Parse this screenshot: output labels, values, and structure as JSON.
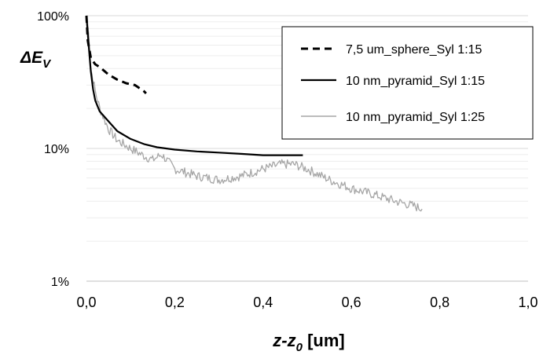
{
  "chart_data": {
    "type": "line",
    "ylabel_main": "ΔE",
    "ylabel_sub": "V",
    "xlabel_main": "z-z",
    "xlabel_sub": "0",
    "xlabel_unit": " [um]",
    "x_scale": "linear",
    "y_scale": "log",
    "xlim": [
      0,
      1
    ],
    "ylim": [
      1,
      100
    ],
    "x_ticks": [
      "0,0",
      "0,2",
      "0,4",
      "0,6",
      "0,8",
      "1,0"
    ],
    "y_ticks": [
      "1%",
      "10%",
      "100%"
    ],
    "grid": "horizontal major and minor",
    "legend_position": "top-right",
    "series": [
      {
        "name": "7,5 um_sphere_Syl 1:15",
        "style": "dashed",
        "color": "#000000",
        "x": [
          0.0,
          0.003,
          0.01,
          0.02,
          0.03,
          0.05,
          0.07,
          0.09,
          0.11,
          0.13,
          0.135
        ],
        "y": [
          100,
          65,
          48,
          43,
          41,
          36,
          33,
          31,
          30,
          27,
          26
        ]
      },
      {
        "name": "10 nm_pyramid_Syl 1:15",
        "style": "solid",
        "color": "#000000",
        "x": [
          0.0,
          0.005,
          0.01,
          0.015,
          0.02,
          0.03,
          0.05,
          0.07,
          0.1,
          0.13,
          0.16,
          0.2,
          0.25,
          0.3,
          0.35,
          0.4,
          0.45,
          0.49
        ],
        "y": [
          100,
          60,
          38,
          28,
          23,
          19,
          16,
          13.5,
          11.8,
          10.8,
          10.2,
          9.8,
          9.5,
          9.3,
          9.1,
          8.9,
          8.9,
          8.9
        ]
      },
      {
        "name": "10 nm_pyramid_Syl 1:25",
        "style": "solid",
        "color": "#a6a6a6",
        "x": [
          0.0,
          0.005,
          0.01,
          0.02,
          0.03,
          0.05,
          0.07,
          0.1,
          0.13,
          0.15,
          0.17,
          0.18,
          0.2,
          0.25,
          0.3,
          0.35,
          0.4,
          0.44,
          0.47,
          0.5,
          0.55,
          0.6,
          0.65,
          0.7,
          0.74,
          0.76
        ],
        "y": [
          100,
          78,
          40,
          27,
          20,
          14,
          11.5,
          10,
          8.8,
          8.2,
          9.0,
          8.3,
          7.0,
          6.2,
          5.8,
          6.2,
          7.0,
          7.6,
          7.6,
          7.0,
          5.8,
          5.0,
          4.5,
          4.0,
          3.7,
          3.5
        ]
      }
    ]
  }
}
